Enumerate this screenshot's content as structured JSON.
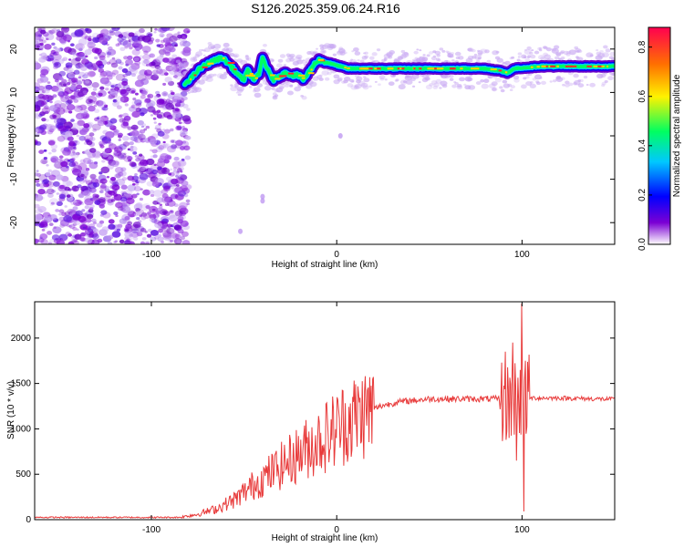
{
  "figure": {
    "title": "S126.2025.359.06.24.R16"
  },
  "chart_data": [
    {
      "type": "heatmap",
      "name": "spectrogram",
      "title": "S126.2025.359.06.24.R16",
      "xlabel": "Height of straight line (km)",
      "ylabel": "Frequency (Hz)",
      "xlim": [
        -163,
        150
      ],
      "ylim": [
        -25,
        25
      ],
      "xticks": [
        -100,
        0,
        100
      ],
      "yticks": [
        20,
        10,
        0,
        -10,
        -20
      ],
      "colorbar": {
        "label": "Normalized spectral amplitude",
        "range": [
          0.0,
          0.88
        ],
        "ticks": [
          "0.0",
          "0.2",
          "0.4",
          "0.6",
          "0.8"
        ],
        "colors": [
          "#ffffff",
          "#7b00d4",
          "#0000ff",
          "#00c8ff",
          "#00ff60",
          "#fff200",
          "#ff7000",
          "#ff0050"
        ]
      },
      "ridge": {
        "x": [
          -82,
          -78,
          -75,
          -72,
          -68,
          -65,
          -62,
          -58,
          -55,
          -52,
          -50,
          -48,
          -45,
          -42,
          -40,
          -38,
          -36,
          -34,
          -30,
          -27,
          -24,
          -21,
          -18,
          -16,
          -13,
          -10,
          -6,
          -2,
          2,
          6,
          10,
          20,
          40,
          60,
          80,
          88,
          92,
          96,
          110,
          130,
          150
        ],
        "y": [
          12,
          13.5,
          15,
          16,
          17,
          17.5,
          18,
          16.5,
          15,
          13.5,
          13,
          15,
          13,
          14,
          18,
          16,
          14,
          13,
          14,
          14.5,
          14,
          14,
          13,
          14,
          16,
          17.5,
          17,
          16.5,
          16,
          15.5,
          15.5,
          15.5,
          15.5,
          15.5,
          15.5,
          15,
          14.5,
          15.5,
          16,
          16,
          16
        ]
      },
      "noise_region": [
        -163,
        -82
      ]
    },
    {
      "type": "line",
      "name": "snr",
      "xlabel": "Height of straight line (km)",
      "ylabel": "SNR (10 * v/v)",
      "xlim": [
        -163,
        150
      ],
      "ylim": [
        0,
        2400
      ],
      "xticks": [
        -100,
        0,
        100
      ],
      "yticks": [
        0,
        500,
        1000,
        1500,
        2000
      ],
      "color": "#e83a3a",
      "trend": {
        "x": [
          -163,
          -120,
          -85,
          -75,
          -65,
          -55,
          -45,
          -35,
          -25,
          -15,
          -5,
          5,
          15,
          25,
          35,
          50,
          70,
          85,
          95,
          100,
          105,
          120,
          150
        ],
        "y": [
          25,
          25,
          25,
          60,
          120,
          220,
          380,
          520,
          660,
          800,
          930,
          1080,
          1180,
          1260,
          1300,
          1330,
          1330,
          1330,
          1330,
          1330,
          1340,
          1340,
          1325
        ]
      },
      "spikes": [
        {
          "x": 91,
          "y": 1850
        },
        {
          "x": 93,
          "y": 900
        },
        {
          "x": 95,
          "y": 1950
        },
        {
          "x": 97,
          "y": 650
        },
        {
          "x": 99,
          "y": 1650
        },
        {
          "x": 100,
          "y": 2380
        },
        {
          "x": 101,
          "y": 90
        },
        {
          "x": 102,
          "y": 1750
        }
      ]
    }
  ]
}
